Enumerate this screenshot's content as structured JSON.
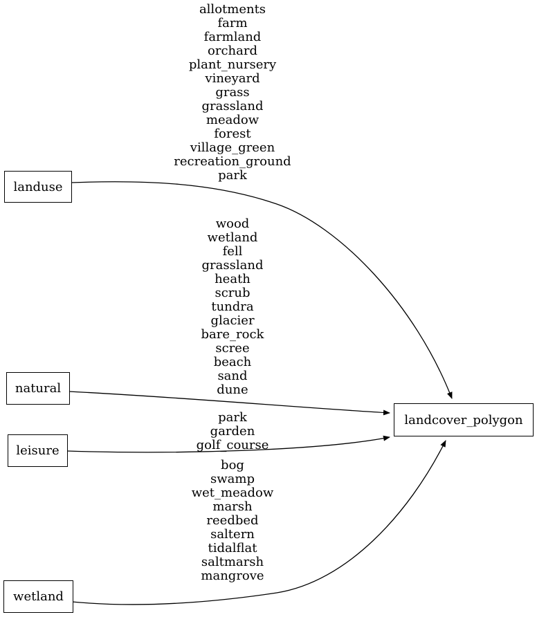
{
  "diagram": {
    "type": "directed-graph",
    "colors": {
      "background": "#ffffff",
      "stroke": "#000000",
      "text": "#000000",
      "node_fill": "#ffffff"
    },
    "nodes": [
      {
        "id": "landuse",
        "label": "landuse"
      },
      {
        "id": "natural",
        "label": "natural"
      },
      {
        "id": "leisure",
        "label": "leisure"
      },
      {
        "id": "wetland",
        "label": "wetland"
      },
      {
        "id": "landcover_polygon",
        "label": "landcover_polygon"
      }
    ],
    "edges": [
      {
        "from": "landuse",
        "to": "landcover_polygon",
        "values": [
          "allotments",
          "farm",
          "farmland",
          "orchard",
          "plant_nursery",
          "vineyard",
          "grass",
          "grassland",
          "meadow",
          "forest",
          "village_green",
          "recreation_ground",
          "park"
        ]
      },
      {
        "from": "natural",
        "to": "landcover_polygon",
        "values": [
          "wood",
          "wetland",
          "fell",
          "grassland",
          "heath",
          "scrub",
          "tundra",
          "glacier",
          "bare_rock",
          "scree",
          "beach",
          "sand",
          "dune"
        ]
      },
      {
        "from": "leisure",
        "to": "landcover_polygon",
        "values": [
          "park",
          "garden",
          "golf_course"
        ]
      },
      {
        "from": "wetland",
        "to": "landcover_polygon",
        "values": [
          "bog",
          "swamp",
          "wet_meadow",
          "marsh",
          "reedbed",
          "saltern",
          "tidalflat",
          "saltmarsh",
          "mangrove"
        ]
      }
    ]
  }
}
